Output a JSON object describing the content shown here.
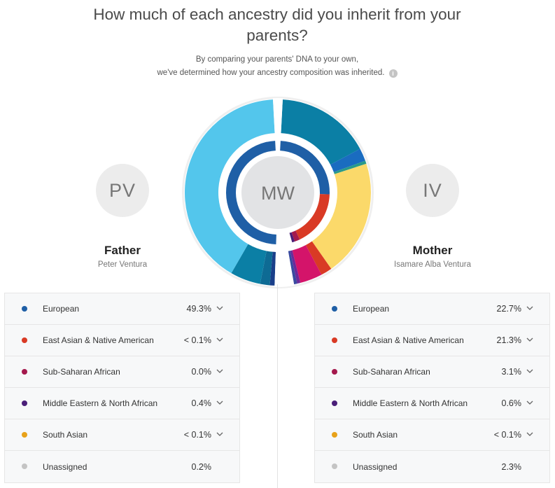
{
  "header": {
    "title_line1": "How much of each ancestry did you inherit from your",
    "title_line2": "parents?",
    "subtitle_line1": "By comparing your parents' DNA to your own,",
    "subtitle_line2": "we've determined how your ancestry composition was inherited.",
    "info_icon": "info-icon"
  },
  "center_avatar": "MW",
  "father": {
    "initials": "PV",
    "role": "Father",
    "name": "Peter Ventura"
  },
  "mother": {
    "initials": "IV",
    "role": "Mother",
    "name": "Isamare Alba Ventura"
  },
  "colors": {
    "european": "#1f5fa6",
    "east_asian": "#d93a25",
    "sub_saharan": "#a4194d",
    "middle_eastern": "#4a1e78",
    "south_asian": "#e8a21a",
    "unassigned": "#c4c4c4"
  },
  "chart_data": {
    "type": "pie",
    "description_series": [
      {
        "name": "Father",
        "values": [
          {
            "label": "European",
            "value": 49.3
          },
          {
            "label": "East Asian & Native American",
            "value": "< 0.1"
          },
          {
            "label": "Sub-Saharan African",
            "value": 0.0
          },
          {
            "label": "Middle Eastern & North African",
            "value": 0.4
          },
          {
            "label": "South Asian",
            "value": "< 0.1"
          },
          {
            "label": "Unassigned",
            "value": 0.2
          }
        ]
      },
      {
        "name": "Mother",
        "values": [
          {
            "label": "European",
            "value": 22.7
          },
          {
            "label": "East Asian & Native American",
            "value": 21.3
          },
          {
            "label": "Sub-Saharan African",
            "value": 3.1
          },
          {
            "label": "Middle Eastern & North African",
            "value": 0.6
          },
          {
            "label": "South Asian",
            "value": "< 0.1"
          },
          {
            "label": "Unassigned",
            "value": 2.3
          }
        ]
      }
    ]
  },
  "father_table": [
    {
      "color": "#1f5fa6",
      "label": "European",
      "value": "49.3%",
      "expandable": true
    },
    {
      "color": "#d93a25",
      "label": "East Asian & Native American",
      "value": "< 0.1%",
      "expandable": true
    },
    {
      "color": "#a4194d",
      "label": "Sub-Saharan African",
      "value": "0.0%",
      "expandable": true
    },
    {
      "color": "#4a1e78",
      "label": "Middle Eastern & North African",
      "value": "0.4%",
      "expandable": true
    },
    {
      "color": "#e8a21a",
      "label": "South Asian",
      "value": "< 0.1%",
      "expandable": true
    },
    {
      "color": "#c4c4c4",
      "label": "Unassigned",
      "value": "0.2%",
      "expandable": false
    }
  ],
  "mother_table": [
    {
      "color": "#1f5fa6",
      "label": "European",
      "value": "22.7%",
      "expandable": true
    },
    {
      "color": "#d93a25",
      "label": "East Asian & Native American",
      "value": "21.3%",
      "expandable": true
    },
    {
      "color": "#a4194d",
      "label": "Sub-Saharan African",
      "value": "3.1%",
      "expandable": true
    },
    {
      "color": "#4a1e78",
      "label": "Middle Eastern & North African",
      "value": "0.6%",
      "expandable": true
    },
    {
      "color": "#e8a21a",
      "label": "South Asian",
      "value": "< 0.1%",
      "expandable": true
    },
    {
      "color": "#c4c4c4",
      "label": "Unassigned",
      "value": "2.3%",
      "expandable": false
    }
  ]
}
